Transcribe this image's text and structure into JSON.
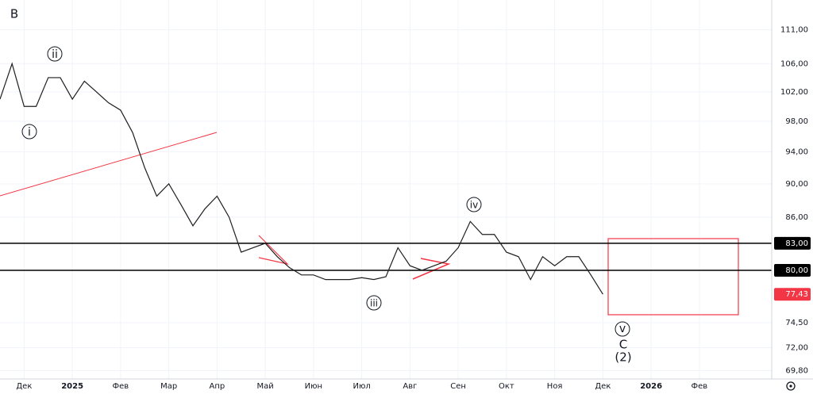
{
  "chart_data": {
    "type": "line",
    "series": [
      {
        "color": "#1f1f1f",
        "values": [
          101,
          106,
          100,
          100,
          104,
          104,
          101,
          103.5,
          102,
          100.5,
          99.5,
          96.5,
          92,
          88.5,
          90,
          87.5,
          85,
          87,
          88.5,
          86,
          82,
          82.5,
          83,
          81.5,
          80.3,
          79.5,
          79.5,
          79,
          79,
          79,
          79.2,
          79,
          79.3,
          82.5,
          80.5,
          80,
          80.5,
          81,
          82.5,
          85.5,
          84,
          84,
          82,
          81.5,
          79,
          81.5,
          80.5,
          81.5,
          81.5,
          79.5,
          77.43
        ]
      }
    ],
    "last_value_label": "77,43",
    "log_scale": true,
    "grid": true,
    "xlim": [
      0,
      64
    ],
    "xticks": [
      {
        "value": 2,
        "label": "Дек"
      },
      {
        "value": 6,
        "label": "2025"
      },
      {
        "value": 10,
        "label": "Фев"
      },
      {
        "value": 14,
        "label": "Мар"
      },
      {
        "value": 18,
        "label": "Апр"
      },
      {
        "value": 22,
        "label": "Май"
      },
      {
        "value": 26,
        "label": "Июн"
      },
      {
        "value": 30,
        "label": "Июл"
      },
      {
        "value": 34,
        "label": "Авг"
      },
      {
        "value": 38,
        "label": "Сен"
      },
      {
        "value": 42,
        "label": "Окт"
      },
      {
        "value": 46,
        "label": "Ноя"
      },
      {
        "value": 50,
        "label": "Дек"
      },
      {
        "value": 54,
        "label": "2026"
      },
      {
        "value": 58,
        "label": "Фев"
      }
    ],
    "ylim": [
      69,
      115.6
    ],
    "yticks": [
      {
        "value": 111,
        "label": "111,00"
      },
      {
        "value": 106,
        "label": "106,00"
      },
      {
        "value": 102,
        "label": "102,00"
      },
      {
        "value": 98,
        "label": "98,00"
      },
      {
        "value": 94,
        "label": "94,00"
      },
      {
        "value": 90,
        "label": "90,00"
      },
      {
        "value": 86,
        "label": "86,00"
      },
      {
        "value": 74.5,
        "label": "74,50"
      },
      {
        "value": 72,
        "label": "72,00"
      },
      {
        "value": 69.8,
        "label": "69,80"
      }
    ],
    "hlines": [
      {
        "value": 83,
        "label": "83,00"
      },
      {
        "value": 80,
        "label": "80,00"
      }
    ],
    "annotations": [
      "B",
      "i",
      "ii",
      "iii",
      "iv",
      "v",
      "C",
      "(2)"
    ]
  }
}
